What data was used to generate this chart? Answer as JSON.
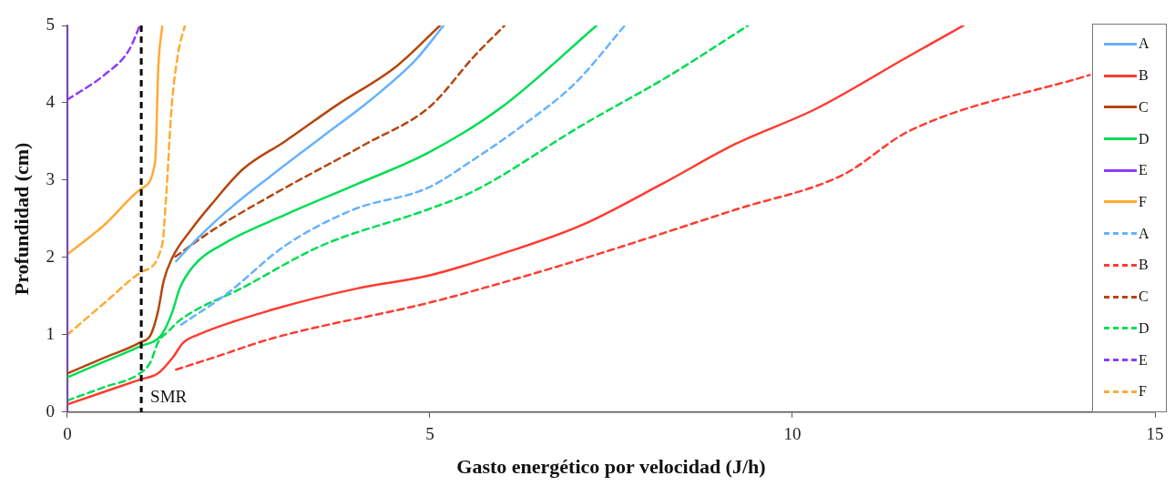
{
  "chart_data": {
    "type": "line",
    "xlabel": "Gasto energético por velocidad (J/h)",
    "ylabel": "Profundidad (cm)",
    "xlim": [
      0,
      15
    ],
    "xticks": [
      0,
      5,
      10,
      15
    ],
    "ylim": [
      0,
      5
    ],
    "yticks": [
      0,
      1,
      2,
      3,
      4,
      5
    ],
    "grid": false,
    "legend": "right",
    "marker": "none",
    "ref_lines": [
      {
        "axis": "x",
        "value": 1.02,
        "label": "SMR",
        "color": "#000000",
        "line_style": "dashed"
      }
    ],
    "series": [
      {
        "name": "A",
        "color": "#66b2ff",
        "line_style": "solid",
        "x": [
          1.5,
          1.8,
          2.2,
          2.8,
          3.5,
          4.2,
          4.8,
          5.19
        ],
        "values": [
          1.95,
          2.25,
          2.6,
          3.05,
          3.55,
          4.05,
          4.55,
          5.0
        ]
      },
      {
        "name": "B",
        "color": "#ff3b30",
        "line_style": "solid",
        "x": [
          0,
          0.5,
          1,
          1.25,
          1.45,
          1.6,
          1.8,
          2.85,
          4,
          5,
          6,
          7.1,
          8.2,
          9.22,
          10.32,
          11.6,
          12.36
        ],
        "values": [
          0.1,
          0.26,
          0.42,
          0.5,
          0.7,
          0.9,
          1.0,
          1.33,
          1.6,
          1.77,
          2.05,
          2.42,
          2.95,
          3.47,
          3.92,
          4.6,
          5.0
        ]
      },
      {
        "name": "C",
        "color": "#b5460f",
        "line_style": "solid",
        "x": [
          0,
          0.5,
          1,
          1.15,
          1.25,
          1.33,
          1.45,
          1.7,
          2,
          2.42,
          3,
          3.7,
          4.55,
          5.14
        ],
        "values": [
          0.5,
          0.7,
          0.9,
          1.0,
          1.3,
          1.7,
          2.0,
          2.35,
          2.7,
          3.14,
          3.5,
          3.96,
          4.48,
          5.0
        ]
      },
      {
        "name": "D",
        "color": "#00dd55",
        "line_style": "solid",
        "x": [
          0,
          0.5,
          1,
          1.3,
          1.45,
          1.55,
          1.75,
          2.2,
          3,
          4,
          4.97,
          6,
          7.3
        ],
        "values": [
          0.45,
          0.65,
          0.85,
          1.0,
          1.3,
          1.6,
          1.9,
          2.2,
          2.55,
          2.95,
          3.35,
          3.95,
          5.0
        ]
      },
      {
        "name": "E",
        "color": "#8c3cff",
        "line_style": "solid",
        "x": [
          0,
          0
        ],
        "values": [
          0,
          5
        ]
      },
      {
        "name": "F",
        "color": "#ffaa33",
        "line_style": "solid",
        "x": [
          0,
          0.51,
          1.02,
          1.21,
          1.23,
          1.25,
          1.31
        ],
        "values": [
          2.04,
          2.42,
          2.89,
          3.23,
          3.63,
          4.36,
          5.0
        ]
      },
      {
        "name": "A",
        "color": "#66b2ff",
        "line_style": "dashed",
        "x": [
          1.57,
          2.2,
          3,
          3.95,
          4.97,
          5.61,
          6.24,
          7,
          7.69
        ],
        "values": [
          1.13,
          1.53,
          2.15,
          2.62,
          2.9,
          3.27,
          3.68,
          4.25,
          5.0
        ]
      },
      {
        "name": "B",
        "color": "#ff3b30",
        "line_style": "dashed",
        "x": [
          1.5,
          2,
          2.85,
          4.97,
          5.61,
          7.1,
          9.22,
          10.7,
          11.6,
          14.1
        ],
        "values": [
          0.55,
          0.7,
          0.96,
          1.41,
          1.57,
          1.98,
          2.62,
          3.07,
          3.63,
          4.36
        ]
      },
      {
        "name": "C",
        "color": "#b5460f",
        "line_style": "dashed",
        "x": [
          1.49,
          2,
          2.85,
          4.12,
          5,
          5.61,
          6.03
        ],
        "values": [
          2.01,
          2.35,
          2.82,
          3.47,
          3.95,
          4.6,
          5.0
        ]
      },
      {
        "name": "D",
        "color": "#00dd55",
        "line_style": "dashed",
        "x": [
          0,
          0.5,
          1,
          1.15,
          1.25,
          1.4,
          1.57,
          2.42,
          3.5,
          4.97,
          5.61,
          7.1,
          8.3,
          9.39
        ],
        "values": [
          0.15,
          0.32,
          0.5,
          0.65,
          0.9,
          1.05,
          1.2,
          1.61,
          2.15,
          2.62,
          2.86,
          3.71,
          4.35,
          5.0
        ]
      },
      {
        "name": "E",
        "color": "#8c3cff",
        "line_style": "dashed",
        "x": [
          0,
          0.51,
          0.85,
          1.0
        ],
        "values": [
          4.04,
          4.36,
          4.68,
          5.0
        ]
      },
      {
        "name": "F",
        "color": "#ffaa33",
        "line_style": "dashed",
        "x": [
          0,
          0.51,
          1.02,
          1.31,
          1.36,
          1.44,
          1.53,
          1.62
        ],
        "values": [
          1.0,
          1.41,
          1.81,
          2.17,
          2.74,
          3.96,
          4.65,
          4.99
        ]
      }
    ]
  }
}
